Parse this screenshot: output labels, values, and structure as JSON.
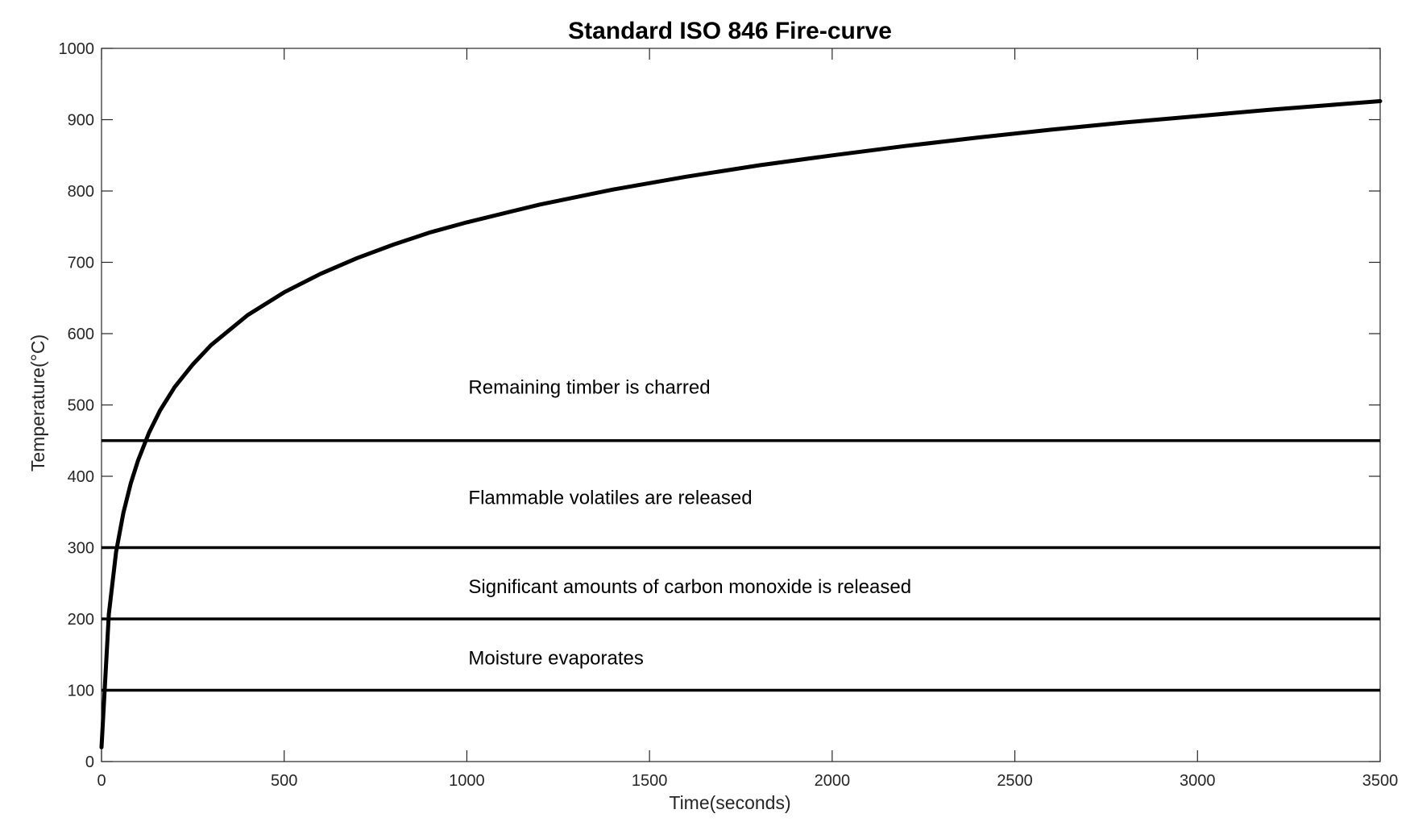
{
  "chart_data": {
    "type": "line",
    "title": "Standard ISO 846 Fire-curve",
    "xlabel": "Time(seconds)",
    "ylabel": "Temperature(°C)",
    "xlim": [
      0,
      3500
    ],
    "ylim": [
      0,
      1000
    ],
    "xticks": [
      0,
      500,
      1000,
      1500,
      2000,
      2500,
      3000,
      3500
    ],
    "yticks": [
      0,
      100,
      200,
      300,
      400,
      500,
      600,
      700,
      800,
      900,
      1000
    ],
    "grid": false,
    "colors": {
      "line": "#000000",
      "axes": "#262626",
      "background": "#ffffff"
    },
    "curve": {
      "x": [
        0,
        20,
        40,
        60,
        80,
        100,
        130,
        160,
        200,
        250,
        300,
        400,
        500,
        600,
        700,
        800,
        900,
        1000,
        1200,
        1400,
        1600,
        1800,
        2000,
        2200,
        2400,
        2600,
        2800,
        3000,
        3200,
        3400,
        3500
      ],
      "y": [
        20,
        207,
        294,
        349,
        390,
        422,
        461,
        492,
        525,
        557,
        584,
        626,
        658,
        684,
        706,
        725,
        742,
        756,
        781,
        802,
        820,
        836,
        850,
        863,
        875,
        886,
        896,
        905,
        914,
        922,
        926
      ]
    },
    "thresholds": [
      450,
      300,
      200,
      100
    ],
    "annotations": [
      {
        "x": 1000,
        "y": 525,
        "text": "Remaining timber is charred"
      },
      {
        "x": 1000,
        "y": 370,
        "text": "Flammable volatiles are released"
      },
      {
        "x": 1000,
        "y": 245,
        "text": "Significant amounts of carbon monoxide is released"
      },
      {
        "x": 1000,
        "y": 145,
        "text": "Moisture evaporates"
      }
    ]
  }
}
